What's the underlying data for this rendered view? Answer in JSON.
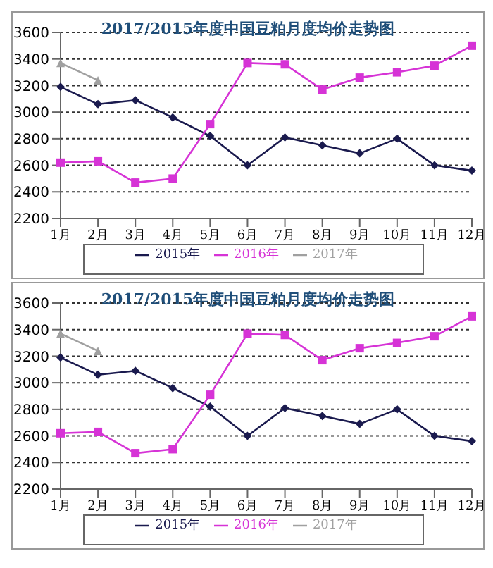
{
  "chart_data": [
    {
      "type": "line",
      "title": "2017/2015年度中国豆粕月度均价走势图",
      "categories": [
        "1月",
        "2月",
        "3月",
        "4月",
        "5月",
        "6月",
        "7月",
        "8月",
        "9月",
        "10月",
        "11月",
        "12月"
      ],
      "series": [
        {
          "name": "2015年",
          "color": "#1a1a4e",
          "marker": "diamond",
          "values": [
            3190,
            3060,
            3090,
            2960,
            2820,
            2600,
            2810,
            2750,
            2690,
            2800,
            2600,
            2560
          ]
        },
        {
          "name": "2016年",
          "color": "#d633d6",
          "marker": "square",
          "values": [
            2620,
            2630,
            2470,
            2500,
            2910,
            3370,
            3360,
            3170,
            3260,
            3300,
            3350,
            3500
          ]
        },
        {
          "name": "2017年",
          "color": "#a0a0a0",
          "marker": "triangle",
          "values": [
            3370,
            3240,
            null,
            null,
            null,
            null,
            null,
            null,
            null,
            null,
            null,
            null
          ]
        }
      ],
      "ylim": [
        2200,
        3600
      ],
      "yticks": [
        2200,
        2400,
        2600,
        2800,
        3000,
        3200,
        3400,
        3600
      ],
      "grid": "y",
      "legend": "bottom"
    },
    {
      "type": "line",
      "title": "2017/2015年度中国豆粕月度均价走势图",
      "categories": [
        "1月",
        "2月",
        "3月",
        "4月",
        "5月",
        "6月",
        "7月",
        "8月",
        "9月",
        "10月",
        "11月",
        "12月"
      ],
      "series": [
        {
          "name": "2015年",
          "color": "#1a1a4e",
          "marker": "diamond",
          "values": [
            3190,
            3060,
            3090,
            2960,
            2820,
            2600,
            2810,
            2750,
            2690,
            2800,
            2600,
            2560
          ]
        },
        {
          "name": "2016年",
          "color": "#d633d6",
          "marker": "square",
          "values": [
            2620,
            2630,
            2470,
            2500,
            2910,
            3370,
            3360,
            3170,
            3260,
            3300,
            3350,
            3500
          ]
        },
        {
          "name": "2017年",
          "color": "#a0a0a0",
          "marker": "triangle",
          "values": [
            3370,
            3240,
            null,
            null,
            null,
            null,
            null,
            null,
            null,
            null,
            null,
            null
          ]
        }
      ],
      "ylim": [
        2200,
        3600
      ],
      "yticks": [
        2200,
        2400,
        2600,
        2800,
        3000,
        3200,
        3400,
        3600
      ],
      "grid": "y",
      "legend": "bottom"
    }
  ]
}
